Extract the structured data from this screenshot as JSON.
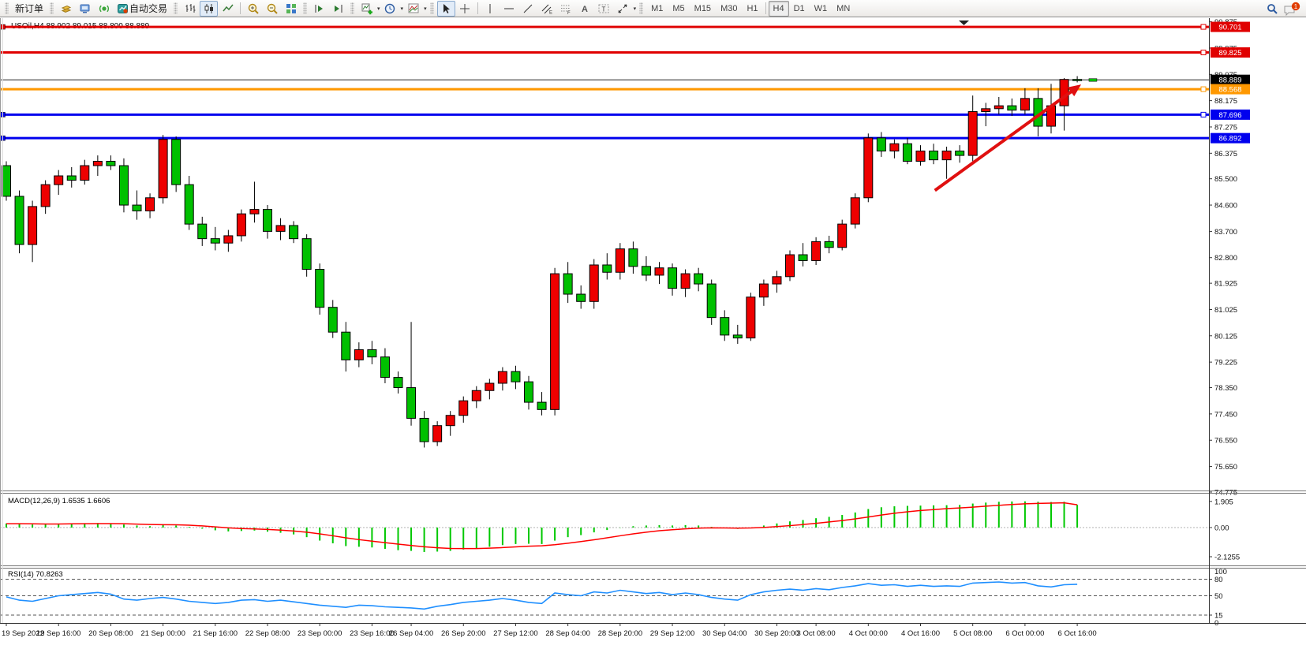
{
  "toolbar": {
    "new_order_label": "新订单",
    "autotrade_label": "自动交易",
    "notification_count": "1",
    "timeframes": [
      {
        "label": "M1"
      },
      {
        "label": "M5"
      },
      {
        "label": "M15"
      },
      {
        "label": "M30"
      },
      {
        "label": "H1",
        "sep_after": true
      },
      {
        "label": "H4",
        "active": true
      },
      {
        "label": "D1"
      },
      {
        "label": "W1"
      },
      {
        "label": "MN"
      }
    ],
    "icon_names": [
      "history-gold-icon",
      "terminal-icon",
      "signals-icon",
      "autotrade-icon",
      "bar-chart-icon",
      "candlestick-icon",
      "line-chart-icon",
      "zoom-in-icon",
      "zoom-out-icon",
      "tile-windows-icon",
      "auto-scroll-icon",
      "chart-shift-icon",
      "new-chart-icon",
      "periods-icon",
      "chart-properties-icon",
      "cursor-icon",
      "crosshair-icon",
      "vertical-line-icon",
      "horizontal-line-icon",
      "trendline-icon",
      "equidistant-channel-icon",
      "fibonacci-icon",
      "text-icon",
      "text-label-icon",
      "arrows-icon",
      "search-icon",
      "chat-icon"
    ]
  },
  "chart": {
    "title": "USOil,H4  88.902 89.015 88.800 88.889",
    "symbol": "USOil",
    "period": "H4"
  },
  "indicators": {
    "macd_label": "MACD(12,26,9) 1.6535 1.6606",
    "rsi_label": "RSI(14) 70.8263"
  },
  "price_axis": {
    "labels": [
      "90.875",
      "89.975",
      "89.075",
      "88.175",
      "87.275",
      "86.375",
      "85.500",
      "84.600",
      "83.700",
      "82.800",
      "81.925",
      "81.025",
      "80.125",
      "79.225",
      "78.350",
      "77.450",
      "76.550",
      "75.650",
      "74.775"
    ]
  },
  "macd_axis": [
    "1.905",
    "0.00",
    "-2.1255"
  ],
  "rsi_axis": [
    "100",
    "80",
    "50",
    "15",
    "0"
  ],
  "time_axis": [
    {
      "bar": 0,
      "label": "19 Sep 2022"
    },
    {
      "bar": 4,
      "label": "19 Sep 16:00"
    },
    {
      "bar": 8,
      "label": "20 Sep 08:00"
    },
    {
      "bar": 12,
      "label": "21 Sep 00:00"
    },
    {
      "bar": 16,
      "label": "21 Sep 16:00"
    },
    {
      "bar": 20,
      "label": "22 Sep 08:00"
    },
    {
      "bar": 24,
      "label": "23 Sep 00:00"
    },
    {
      "bar": 28,
      "label": "23 Sep 16:00"
    },
    {
      "bar": 31,
      "label": "26 Sep 04:00"
    },
    {
      "bar": 35,
      "label": "26 Sep 20:00"
    },
    {
      "bar": 39,
      "label": "27 Sep 12:00"
    },
    {
      "bar": 43,
      "label": "28 Sep 04:00"
    },
    {
      "bar": 47,
      "label": "28 Sep 20:00"
    },
    {
      "bar": 51,
      "label": "29 Sep 12:00"
    },
    {
      "bar": 55,
      "label": "30 Sep 04:00"
    },
    {
      "bar": 59,
      "label": "30 Sep 20:00"
    },
    {
      "bar": 62,
      "label": "3 Oct 08:00"
    },
    {
      "bar": 66,
      "label": "4 Oct 00:00"
    },
    {
      "bar": 70,
      "label": "4 Oct 16:00"
    },
    {
      "bar": 74,
      "label": "5 Oct 08:00"
    },
    {
      "bar": 78,
      "label": "6 Oct 00:00"
    },
    {
      "bar": 82,
      "label": "6 Oct 16:00"
    }
  ],
  "chart_data": {
    "type": "candlestick",
    "symbol": "USOil",
    "period": "H4",
    "current_price": "88.889",
    "bull_color": "#ee0000",
    "bear_color": "#00c000",
    "wick_color": "#000000",
    "candles": [
      [
        85.95,
        86.1,
        84.75,
        84.9
      ],
      [
        84.9,
        85.1,
        82.95,
        83.25
      ],
      [
        83.25,
        84.75,
        82.65,
        84.55
      ],
      [
        84.55,
        85.45,
        84.3,
        85.3
      ],
      [
        85.3,
        85.8,
        84.95,
        85.6
      ],
      [
        85.6,
        85.9,
        85.2,
        85.45
      ],
      [
        85.45,
        86.15,
        85.3,
        85.95
      ],
      [
        85.95,
        86.3,
        85.6,
        86.1
      ],
      [
        86.1,
        86.3,
        85.8,
        85.95
      ],
      [
        85.95,
        86.2,
        84.35,
        84.6
      ],
      [
        84.6,
        85.1,
        84.1,
        84.4
      ],
      [
        84.4,
        85.0,
        84.15,
        84.85
      ],
      [
        84.85,
        87.0,
        84.65,
        86.85
      ],
      [
        86.85,
        86.95,
        85.05,
        85.3
      ],
      [
        85.3,
        85.6,
        83.75,
        83.95
      ],
      [
        83.95,
        84.2,
        83.2,
        83.45
      ],
      [
        83.45,
        83.85,
        83.05,
        83.3
      ],
      [
        83.3,
        83.75,
        83.0,
        83.55
      ],
      [
        83.55,
        84.45,
        83.35,
        84.3
      ],
      [
        84.3,
        85.4,
        84.0,
        84.45
      ],
      [
        84.45,
        84.6,
        83.45,
        83.7
      ],
      [
        83.7,
        84.15,
        83.4,
        83.9
      ],
      [
        83.9,
        84.05,
        83.3,
        83.45
      ],
      [
        83.45,
        83.6,
        82.15,
        82.4
      ],
      [
        82.4,
        82.6,
        80.85,
        81.1
      ],
      [
        81.1,
        81.35,
        80.05,
        80.25
      ],
      [
        80.25,
        80.6,
        78.9,
        79.3
      ],
      [
        79.3,
        79.9,
        79.05,
        79.65
      ],
      [
        79.65,
        79.95,
        79.15,
        79.4
      ],
      [
        79.4,
        79.7,
        78.5,
        78.7
      ],
      [
        78.7,
        78.9,
        78.15,
        78.35
      ],
      [
        78.35,
        80.6,
        77.05,
        77.3
      ],
      [
        77.3,
        77.55,
        76.3,
        76.5
      ],
      [
        76.5,
        77.2,
        76.35,
        77.05
      ],
      [
        77.05,
        77.55,
        76.7,
        77.4
      ],
      [
        77.4,
        78.05,
        77.15,
        77.9
      ],
      [
        77.9,
        78.4,
        77.65,
        78.25
      ],
      [
        78.25,
        78.65,
        77.95,
        78.5
      ],
      [
        78.5,
        79.05,
        78.25,
        78.9
      ],
      [
        78.9,
        79.1,
        78.3,
        78.55
      ],
      [
        78.55,
        78.75,
        77.6,
        77.85
      ],
      [
        77.85,
        78.2,
        77.4,
        77.6
      ],
      [
        77.6,
        82.45,
        77.4,
        82.25
      ],
      [
        82.25,
        82.65,
        81.25,
        81.55
      ],
      [
        81.55,
        81.85,
        81.05,
        81.3
      ],
      [
        81.3,
        82.75,
        81.05,
        82.55
      ],
      [
        82.55,
        82.95,
        82.05,
        82.3
      ],
      [
        82.3,
        83.3,
        82.05,
        83.1
      ],
      [
        83.1,
        83.35,
        82.25,
        82.5
      ],
      [
        82.5,
        82.85,
        82.0,
        82.2
      ],
      [
        82.2,
        82.65,
        81.9,
        82.45
      ],
      [
        82.45,
        82.6,
        81.5,
        81.75
      ],
      [
        81.75,
        82.4,
        81.45,
        82.25
      ],
      [
        82.25,
        82.45,
        81.65,
        81.9
      ],
      [
        81.9,
        82.05,
        80.5,
        80.75
      ],
      [
        80.75,
        81.0,
        79.95,
        80.15
      ],
      [
        80.15,
        80.5,
        79.85,
        80.05
      ],
      [
        80.05,
        81.6,
        79.95,
        81.45
      ],
      [
        81.45,
        82.05,
        81.15,
        81.9
      ],
      [
        81.9,
        82.35,
        81.6,
        82.15
      ],
      [
        82.15,
        83.05,
        82.0,
        82.9
      ],
      [
        82.9,
        83.3,
        82.5,
        82.7
      ],
      [
        82.7,
        83.5,
        82.55,
        83.35
      ],
      [
        83.35,
        83.55,
        82.95,
        83.15
      ],
      [
        83.15,
        84.1,
        83.05,
        83.95
      ],
      [
        83.95,
        85.0,
        83.8,
        84.85
      ],
      [
        84.85,
        87.05,
        84.7,
        86.9
      ],
      [
        86.9,
        87.1,
        86.25,
        86.45
      ],
      [
        86.45,
        86.85,
        86.2,
        86.7
      ],
      [
        86.7,
        86.9,
        86.0,
        86.1
      ],
      [
        86.1,
        86.65,
        85.95,
        86.45
      ],
      [
        86.45,
        86.7,
        86.0,
        86.15
      ],
      [
        86.15,
        86.6,
        85.5,
        86.45
      ],
      [
        86.45,
        86.65,
        86.05,
        86.3
      ],
      [
        86.3,
        88.35,
        86.1,
        87.8
      ],
      [
        87.8,
        88.1,
        87.3,
        87.9
      ],
      [
        87.9,
        88.3,
        87.7,
        88.0
      ],
      [
        88.0,
        88.25,
        87.65,
        87.85
      ],
      [
        87.85,
        88.6,
        87.7,
        88.25
      ],
      [
        88.25,
        88.6,
        86.95,
        87.3
      ],
      [
        87.3,
        88.75,
        87.05,
        88.0
      ],
      [
        88.0,
        88.95,
        87.15,
        88.902
      ],
      [
        88.902,
        89.015,
        88.8,
        88.889
      ]
    ],
    "hlines": [
      {
        "price": 90.701,
        "color": "#e00000",
        "width": 3,
        "label": "90.701",
        "label_bg": "#e00000",
        "handle_left": true,
        "handle_right": true
      },
      {
        "price": 89.825,
        "color": "#e00000",
        "width": 3,
        "label": "89.825",
        "label_bg": "#e00000",
        "handle_left": false,
        "handle_right": true
      },
      {
        "price": 88.889,
        "color": "#222222",
        "width": 1,
        "label": "88.889",
        "label_bg": "#000000",
        "handle_left": false,
        "handle_right": false
      },
      {
        "price": 88.568,
        "color": "#ff9800",
        "width": 3,
        "label": "88.568",
        "label_bg": "#ff9800",
        "handle_left": false,
        "handle_right": true
      },
      {
        "price": 87.696,
        "color": "#0000ee",
        "width": 3,
        "label": "87.696",
        "label_bg": "#0000ee",
        "handle_left": true,
        "handle_right": true
      },
      {
        "price": 86.892,
        "color": "#0000ee",
        "width": 3,
        "label": "86.892",
        "label_bg": "#0000ee",
        "handle_left": true,
        "handle_right": false
      }
    ],
    "arrow": {
      "from_bar": 71.1,
      "from_price": 85.1,
      "to_bar": 82.3,
      "to_price": 88.73,
      "color": "#e01010",
      "width": 4
    },
    "last_tick": {
      "bar": 83.2,
      "price": 88.889
    },
    "macd": {
      "name": "MACD(12,26,9)",
      "value_main": 1.6535,
      "value_signal": 1.6606,
      "histogram_color": "#00c800",
      "signal_color": "#ff0000",
      "scale_labels": [
        1.905,
        0.0,
        -2.1255
      ],
      "values": [
        0.3,
        0.28,
        0.22,
        0.25,
        0.28,
        0.3,
        0.32,
        0.33,
        0.3,
        0.22,
        0.15,
        0.1,
        0.18,
        0.15,
        0.05,
        -0.08,
        -0.2,
        -0.28,
        -0.25,
        -0.22,
        -0.3,
        -0.38,
        -0.5,
        -0.7,
        -0.95,
        -1.15,
        -1.35,
        -1.4,
        -1.45,
        -1.55,
        -1.65,
        -1.7,
        -1.78,
        -1.75,
        -1.7,
        -1.6,
        -1.5,
        -1.4,
        -1.28,
        -1.2,
        -1.18,
        -1.2,
        -0.95,
        -0.7,
        -0.55,
        -0.35,
        -0.18,
        -0.02,
        0.1,
        0.15,
        0.18,
        0.15,
        0.18,
        0.15,
        0.05,
        -0.05,
        -0.1,
        0.0,
        0.15,
        0.3,
        0.45,
        0.55,
        0.68,
        0.78,
        0.92,
        1.1,
        1.35,
        1.48,
        1.55,
        1.58,
        1.6,
        1.62,
        1.63,
        1.65,
        1.75,
        1.82,
        1.88,
        1.9,
        1.91,
        1.88,
        1.86,
        1.88,
        1.6535
      ],
      "signal": [
        0.28,
        0.28,
        0.27,
        0.26,
        0.26,
        0.27,
        0.28,
        0.29,
        0.29,
        0.28,
        0.25,
        0.22,
        0.21,
        0.2,
        0.17,
        0.12,
        0.05,
        -0.02,
        -0.07,
        -0.1,
        -0.14,
        -0.19,
        -0.25,
        -0.34,
        -0.46,
        -0.6,
        -0.75,
        -0.88,
        -0.99,
        -1.1,
        -1.21,
        -1.31,
        -1.4,
        -1.47,
        -1.52,
        -1.53,
        -1.53,
        -1.5,
        -1.46,
        -1.41,
        -1.36,
        -1.33,
        -1.25,
        -1.14,
        -1.02,
        -0.89,
        -0.75,
        -0.6,
        -0.46,
        -0.34,
        -0.23,
        -0.16,
        -0.09,
        -0.04,
        -0.02,
        -0.03,
        -0.04,
        -0.03,
        0.01,
        0.07,
        0.14,
        0.22,
        0.31,
        0.41,
        0.51,
        0.63,
        0.77,
        0.91,
        1.04,
        1.15,
        1.24,
        1.31,
        1.38,
        1.43,
        1.49,
        1.56,
        1.62,
        1.68,
        1.73,
        1.76,
        1.78,
        1.8,
        1.6606
      ]
    },
    "rsi": {
      "name": "RSI(14)",
      "value": 70.8263,
      "line_color": "#1f8fff",
      "levels": [
        80,
        50,
        15
      ],
      "values": [
        48,
        42,
        40,
        45,
        50,
        52,
        54,
        56,
        53,
        44,
        42,
        45,
        47,
        44,
        40,
        38,
        36,
        38,
        42,
        43,
        40,
        42,
        39,
        36,
        33,
        31,
        29,
        33,
        32,
        30,
        29,
        28,
        26,
        31,
        34,
        38,
        40,
        42,
        45,
        42,
        38,
        36,
        55,
        52,
        50,
        57,
        55,
        60,
        57,
        54,
        56,
        52,
        55,
        52,
        47,
        44,
        42,
        52,
        57,
        60,
        62,
        60,
        63,
        61,
        65,
        68,
        72,
        69,
        70,
        67,
        69,
        67,
        68,
        67,
        73,
        74,
        75,
        73,
        74,
        68,
        66,
        70,
        70.8263
      ]
    }
  }
}
